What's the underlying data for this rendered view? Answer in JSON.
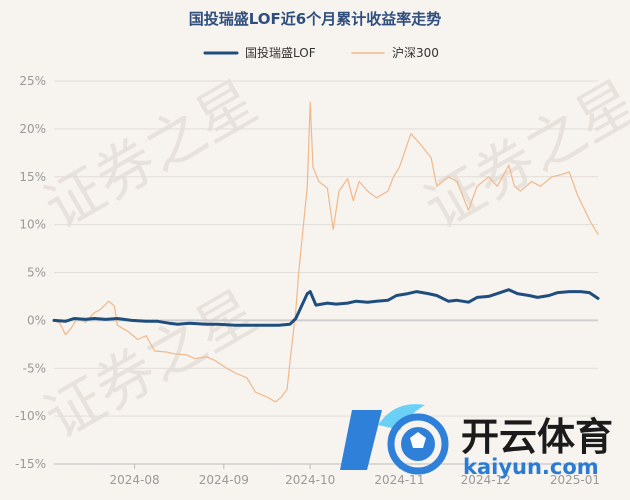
{
  "chart_data": {
    "type": "line",
    "title": "国投瑞盛LOF近6个月累计收益率走势",
    "ylim": [
      -15,
      25
    ],
    "yticks": [
      -15,
      -10,
      -5,
      0,
      5,
      10,
      15,
      20,
      25
    ],
    "ytick_labels": [
      "-15%",
      "-10%",
      "-5%",
      "0%",
      "5%",
      "10%",
      "15%",
      "20%",
      "25%"
    ],
    "x_start": "2024-07-04",
    "x_end": "2025-01-09",
    "xticks": [
      "2024-08-01",
      "2024-09-01",
      "2024-10-01",
      "2024-11-01",
      "2024-12-01",
      "2025-01-01"
    ],
    "xtick_labels": [
      "2024-08",
      "2024-09",
      "2024-10",
      "2024-11",
      "2024-12",
      "2025-01"
    ],
    "legend_position": "top-center",
    "grid": "horizontal",
    "series": [
      {
        "name": "国投瑞盛LOF",
        "color": "#1f4e7e",
        "points": [
          [
            "2024-07-04",
            0
          ],
          [
            "2024-07-08",
            -0.1
          ],
          [
            "2024-07-11",
            0.2
          ],
          [
            "2024-07-15",
            0.1
          ],
          [
            "2024-07-18",
            0.2
          ],
          [
            "2024-07-22",
            0.1
          ],
          [
            "2024-07-26",
            0.2
          ],
          [
            "2024-07-31",
            0
          ],
          [
            "2024-08-05",
            -0.1
          ],
          [
            "2024-08-09",
            -0.1
          ],
          [
            "2024-08-13",
            -0.3
          ],
          [
            "2024-08-16",
            -0.4
          ],
          [
            "2024-08-20",
            -0.3
          ],
          [
            "2024-08-26",
            -0.4
          ],
          [
            "2024-08-30",
            -0.4
          ],
          [
            "2024-09-05",
            -0.5
          ],
          [
            "2024-09-11",
            -0.5
          ],
          [
            "2024-09-16",
            -0.5
          ],
          [
            "2024-09-20",
            -0.5
          ],
          [
            "2024-09-24",
            -0.4
          ],
          [
            "2024-09-26",
            0.2
          ],
          [
            "2024-09-30",
            2.8
          ],
          [
            "2024-10-01",
            3.0
          ],
          [
            "2024-10-03",
            1.6
          ],
          [
            "2024-10-07",
            1.8
          ],
          [
            "2024-10-10",
            1.7
          ],
          [
            "2024-10-14",
            1.8
          ],
          [
            "2024-10-17",
            2.0
          ],
          [
            "2024-10-21",
            1.9
          ],
          [
            "2024-10-24",
            2.0
          ],
          [
            "2024-10-28",
            2.1
          ],
          [
            "2024-10-31",
            2.6
          ],
          [
            "2024-11-04",
            2.8
          ],
          [
            "2024-11-07",
            3.0
          ],
          [
            "2024-11-11",
            2.8
          ],
          [
            "2024-11-14",
            2.6
          ],
          [
            "2024-11-18",
            2.0
          ],
          [
            "2024-11-21",
            2.1
          ],
          [
            "2024-11-25",
            1.9
          ],
          [
            "2024-11-28",
            2.4
          ],
          [
            "2024-12-02",
            2.5
          ],
          [
            "2024-12-05",
            2.8
          ],
          [
            "2024-12-09",
            3.2
          ],
          [
            "2024-12-12",
            2.8
          ],
          [
            "2024-12-16",
            2.6
          ],
          [
            "2024-12-19",
            2.4
          ],
          [
            "2024-12-23",
            2.6
          ],
          [
            "2024-12-26",
            2.9
          ],
          [
            "2024-12-30",
            3.0
          ],
          [
            "2025-01-03",
            3.0
          ],
          [
            "2025-01-06",
            2.9
          ],
          [
            "2025-01-09",
            2.3
          ]
        ]
      },
      {
        "name": "沪深300",
        "color": "#f0b98a",
        "points": [
          [
            "2024-07-04",
            0
          ],
          [
            "2024-07-06",
            -0.3
          ],
          [
            "2024-07-08",
            -1.5
          ],
          [
            "2024-07-10",
            -0.8
          ],
          [
            "2024-07-12",
            0.2
          ],
          [
            "2024-07-15",
            -0.2
          ],
          [
            "2024-07-18",
            0.8
          ],
          [
            "2024-07-20",
            1.1
          ],
          [
            "2024-07-23",
            2.0
          ],
          [
            "2024-07-25",
            1.5
          ],
          [
            "2024-07-26",
            -0.5
          ],
          [
            "2024-07-30",
            -1.2
          ],
          [
            "2024-08-02",
            -2.0
          ],
          [
            "2024-08-05",
            -1.6
          ],
          [
            "2024-08-08",
            -3.2
          ],
          [
            "2024-08-12",
            -3.3
          ],
          [
            "2024-08-15",
            -3.5
          ],
          [
            "2024-08-19",
            -3.6
          ],
          [
            "2024-08-22",
            -4.0
          ],
          [
            "2024-08-26",
            -3.8
          ],
          [
            "2024-08-29",
            -4.2
          ],
          [
            "2024-09-02",
            -5.0
          ],
          [
            "2024-09-05",
            -5.5
          ],
          [
            "2024-09-09",
            -6.0
          ],
          [
            "2024-09-12",
            -7.5
          ],
          [
            "2024-09-16",
            -8.0
          ],
          [
            "2024-09-19",
            -8.5
          ],
          [
            "2024-09-21",
            -8.0
          ],
          [
            "2024-09-23",
            -7.2
          ],
          [
            "2024-09-24",
            -4.3
          ],
          [
            "2024-09-26",
            1.0
          ],
          [
            "2024-09-27",
            5.0
          ],
          [
            "2024-09-30",
            14.0
          ],
          [
            "2024-10-01",
            22.8
          ],
          [
            "2024-10-02",
            16.0
          ],
          [
            "2024-10-04",
            14.5
          ],
          [
            "2024-10-07",
            13.8
          ],
          [
            "2024-10-09",
            9.5
          ],
          [
            "2024-10-11",
            13.5
          ],
          [
            "2024-10-14",
            14.8
          ],
          [
            "2024-10-16",
            12.5
          ],
          [
            "2024-10-18",
            14.5
          ],
          [
            "2024-10-21",
            13.5
          ],
          [
            "2024-10-24",
            12.8
          ],
          [
            "2024-10-28",
            13.5
          ],
          [
            "2024-10-30",
            15.0
          ],
          [
            "2024-11-01",
            16.0
          ],
          [
            "2024-11-05",
            19.5
          ],
          [
            "2024-11-08",
            18.5
          ],
          [
            "2024-11-12",
            17.0
          ],
          [
            "2024-11-14",
            14.0
          ],
          [
            "2024-11-18",
            15.0
          ],
          [
            "2024-11-21",
            14.5
          ],
          [
            "2024-11-25",
            11.5
          ],
          [
            "2024-11-28",
            14.0
          ],
          [
            "2024-12-02",
            15.0
          ],
          [
            "2024-12-05",
            14.0
          ],
          [
            "2024-12-09",
            16.2
          ],
          [
            "2024-12-11",
            14.0
          ],
          [
            "2024-12-13",
            13.5
          ],
          [
            "2024-12-17",
            14.5
          ],
          [
            "2024-12-20",
            14.0
          ],
          [
            "2024-12-24",
            15.0
          ],
          [
            "2024-12-27",
            15.2
          ],
          [
            "2024-12-30",
            15.5
          ],
          [
            "2025-01-02",
            13.0
          ],
          [
            "2025-01-06",
            10.5
          ],
          [
            "2025-01-09",
            9.0
          ]
        ]
      }
    ]
  },
  "watermark": [
    "证券之星",
    "证券之星",
    "证券之星"
  ],
  "brand": {
    "name_cn": "开云体育",
    "name_en": "kaiyun.com",
    "ring_color": "#2f80d8",
    "accent_color": "#6ad0f5"
  }
}
